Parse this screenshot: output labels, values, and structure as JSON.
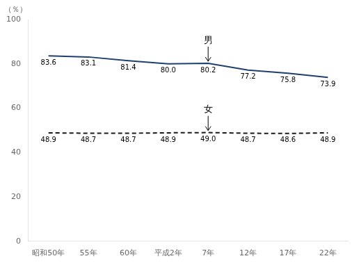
{
  "chart_data": {
    "type": "line",
    "categories": [
      "昭和50年",
      "55年",
      "60年",
      "平成2年",
      "7年",
      "12年",
      "17年",
      "22年"
    ],
    "series": [
      {
        "color": "#1f3f6e",
        "line_style": "solid",
        "values": [
          83.6,
          83.1,
          81.4,
          80.0,
          80.2,
          77.2,
          75.8,
          73.9
        ],
        "value_labels": [
          "83.6",
          "83.1",
          "81.4",
          "80.0",
          "80.2",
          "77.2",
          "75.8",
          "73.9"
        ]
      },
      {
        "color": "#1a1a1a",
        "line_style": "dashed",
        "values": [
          48.9,
          48.7,
          48.7,
          48.9,
          49.0,
          48.7,
          48.6,
          48.9
        ],
        "value_labels": [
          "48.9",
          "48.7",
          "48.7",
          "48.9",
          "49.0",
          "48.7",
          "48.6",
          "48.9"
        ]
      }
    ],
    "ylabel": "（％）",
    "ylim": [
      0,
      100
    ],
    "yticks": [
      0,
      20,
      40,
      60,
      80,
      100
    ],
    "grid": false,
    "data_labels": true,
    "annotations": [
      {
        "text": "男",
        "x": "7年",
        "y": 80.2
      },
      {
        "text": "女",
        "x": "7年",
        "y": 49.0
      }
    ]
  }
}
